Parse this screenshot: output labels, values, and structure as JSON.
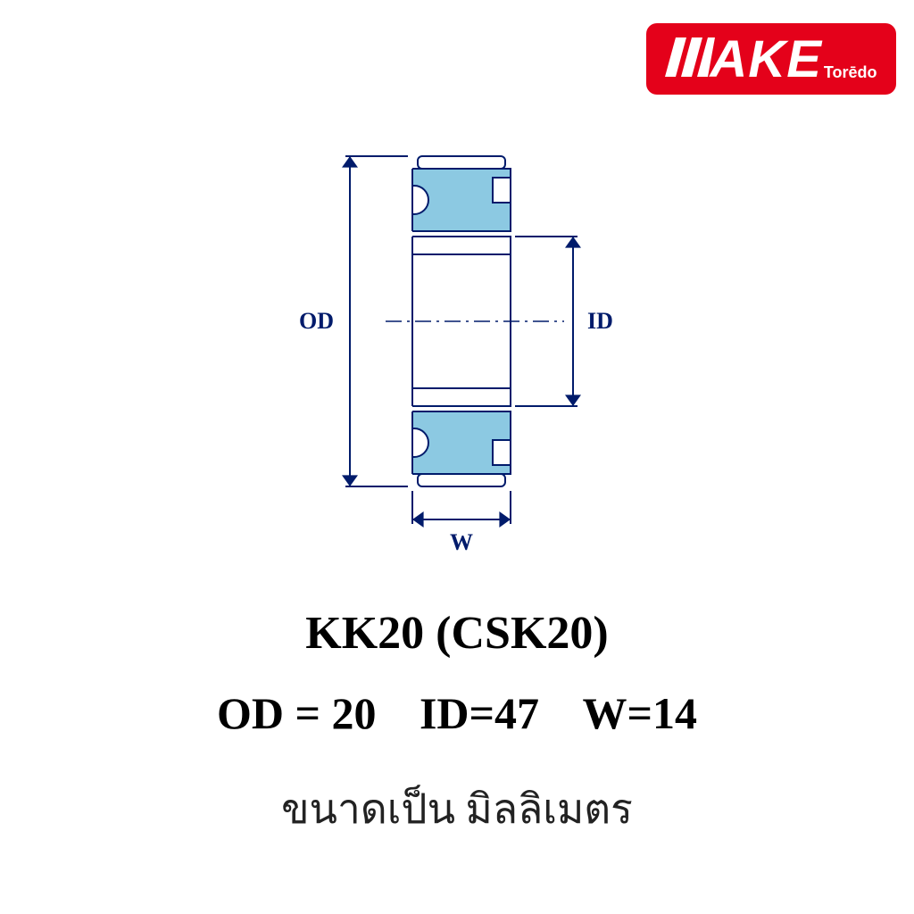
{
  "logo": {
    "bg_color": "#e4011a",
    "text_color": "#ffffff",
    "main": "AKE",
    "sub": "Torēdo"
  },
  "diagram": {
    "stroke": "#001b6b",
    "fill_accent": "#8cc9e2",
    "bg": "#ffffff",
    "label_od": "OD",
    "label_id": "ID",
    "label_w": "W"
  },
  "product": {
    "title": "KK20 (CSK20)",
    "od_label": "OD = 20",
    "id_label": "ID=47",
    "w_label": "W=14",
    "unit_text": "ขนาดเป็น มิลลิเมตร"
  },
  "style": {
    "title_fontsize": 52,
    "dims_fontsize": 50,
    "unit_fontsize": 46,
    "text_color": "#000000"
  }
}
